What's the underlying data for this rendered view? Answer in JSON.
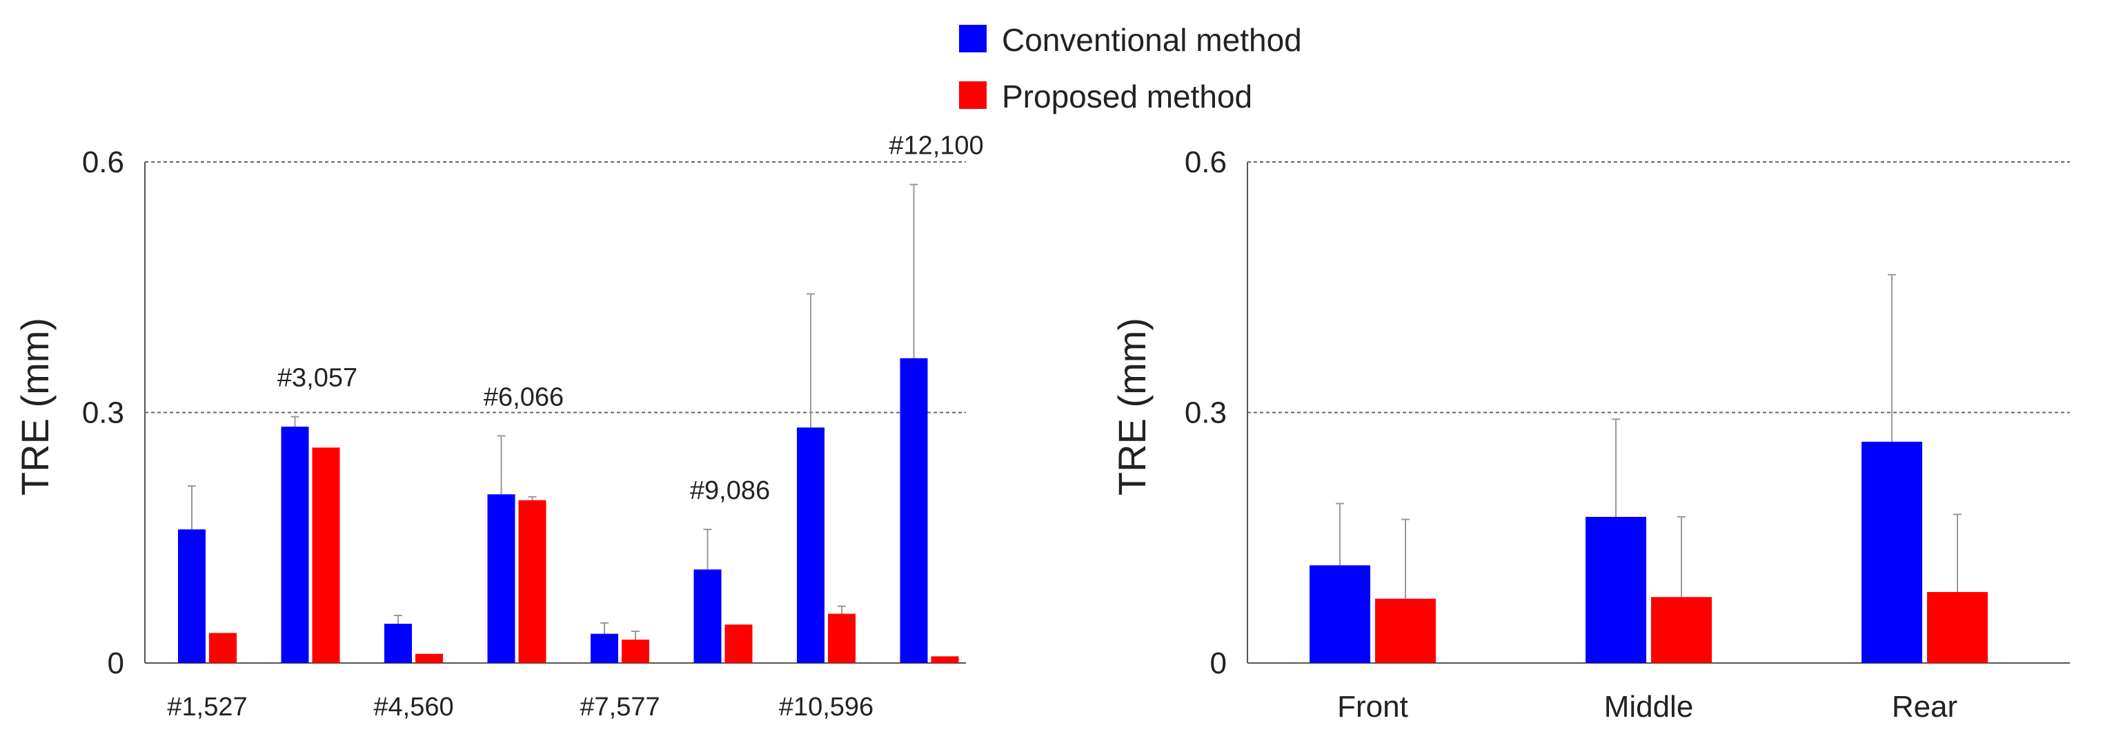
{
  "legend": [
    {
      "label": "Conventional method",
      "color": "#0000ff"
    },
    {
      "label": "Proposed method",
      "color": "#ff0000"
    }
  ],
  "chart_data": [
    {
      "type": "bar",
      "ylabel": "TRE (mm)",
      "ylim": [
        0,
        0.6
      ],
      "yticks": [
        {
          "v": 0,
          "label": "0"
        },
        {
          "v": 0.3,
          "label": "0.3"
        },
        {
          "v": 0.6,
          "label": "0.6"
        }
      ],
      "grid": "dashed at 0.3 and 0.6",
      "categories": [
        "#1,527",
        "#3,057",
        "#4,560",
        "#6,066",
        "#7,577",
        "#9,086",
        "#10,596",
        "#12,100"
      ],
      "bottom_labels": [
        "#1,527",
        "",
        "#4,560",
        "",
        "#7,577",
        "",
        "#10,596",
        ""
      ],
      "annotations": [
        "",
        "#3,057",
        "",
        "#6,066",
        "",
        "#9,086",
        "",
        "#12,100"
      ],
      "series": [
        {
          "name": "Conventional method",
          "color": "#0000ff",
          "values": [
            0.16,
            0.283,
            0.047,
            0.202,
            0.035,
            0.112,
            0.282,
            0.365
          ],
          "errors": [
            0.052,
            0.012,
            0.01,
            0.07,
            0.013,
            0.048,
            0.16,
            0.208
          ]
        },
        {
          "name": "Proposed method",
          "color": "#ff0000",
          "values": [
            0.036,
            0.258,
            0.011,
            0.195,
            0.028,
            0.046,
            0.059,
            0.008
          ],
          "errors": [
            0.0,
            0.0,
            0.0,
            0.004,
            0.01,
            0.0,
            0.009,
            0.0
          ]
        }
      ]
    },
    {
      "type": "bar",
      "ylabel": "TRE (mm)",
      "ylim": [
        0,
        0.6
      ],
      "yticks": [
        {
          "v": 0,
          "label": "0"
        },
        {
          "v": 0.3,
          "label": "0.3"
        },
        {
          "v": 0.6,
          "label": "0.6"
        }
      ],
      "grid": "dashed at 0.3 and 0.6",
      "categories": [
        "Front",
        "Middle",
        "Rear"
      ],
      "series": [
        {
          "name": "Conventional method",
          "color": "#0000ff",
          "values": [
            0.117,
            0.175,
            0.265
          ],
          "errors": [
            0.074,
            0.117,
            0.2
          ]
        },
        {
          "name": "Proposed method",
          "color": "#ff0000",
          "values": [
            0.077,
            0.079,
            0.085
          ],
          "errors": [
            0.095,
            0.096,
            0.093
          ]
        }
      ]
    }
  ]
}
